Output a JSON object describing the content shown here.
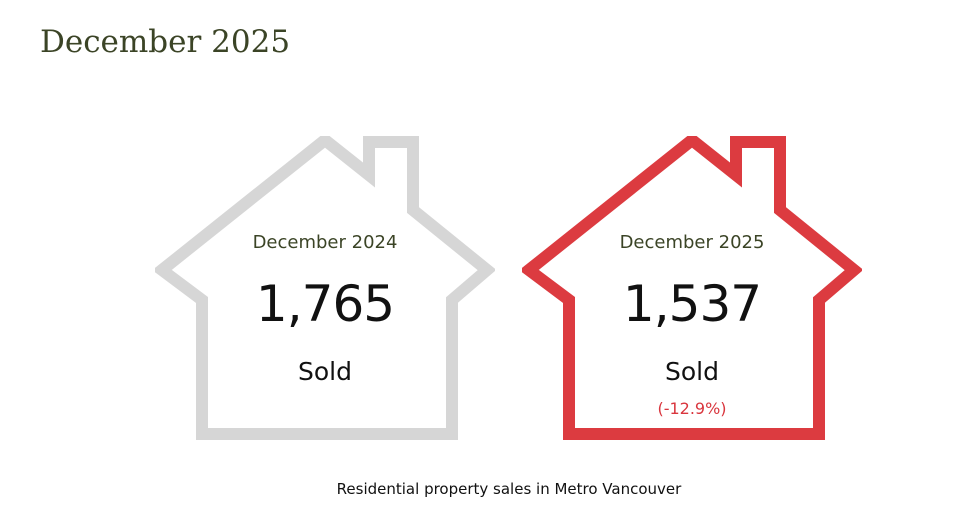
{
  "page": {
    "title": "December 2025",
    "caption": "Residential property sales in Metro Vancouver"
  },
  "chart_data": {
    "type": "table",
    "title": "",
    "series": [
      {
        "period": "December 2024",
        "value": 1765,
        "value_label": "1,765",
        "unit": "Sold",
        "change": "",
        "outline_color": "#d6d6d6"
      },
      {
        "period": "December 2025",
        "value": 1537,
        "value_label": "1,537",
        "unit": "Sold",
        "change": "(-12.9%)",
        "outline_color": "#dc3b40"
      }
    ],
    "grid": false,
    "legend": "none"
  },
  "icons": {
    "house_outline": "house-icon"
  }
}
